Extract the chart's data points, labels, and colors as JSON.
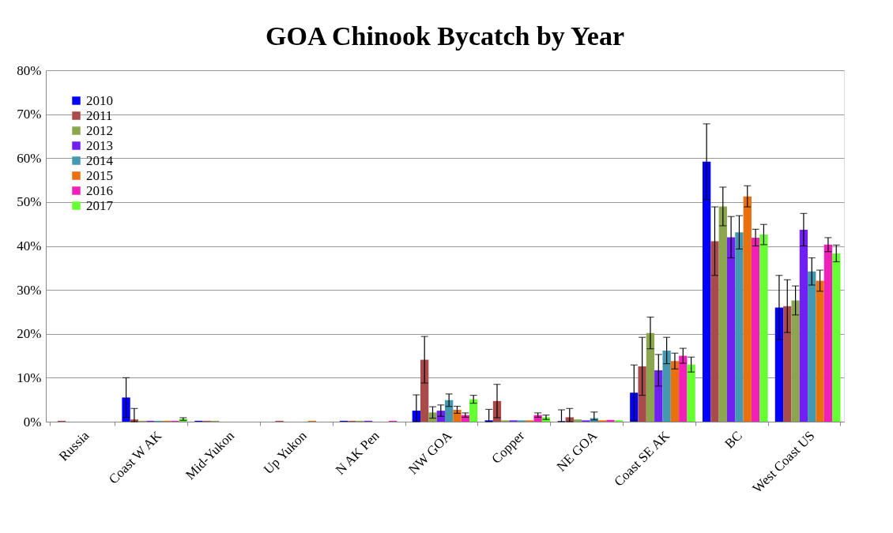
{
  "chart_data": {
    "type": "bar",
    "title": "GOA Chinook Bycatch by Year",
    "categories": [
      "Russia",
      "Coast W AK",
      "Mid-Yukon",
      "Up Yukon",
      "N AK Pen",
      "NW GOA",
      "Copper",
      "NE GOA",
      "Coast SE AK",
      "BC",
      "West Coast US"
    ],
    "series": [
      {
        "name": "2010",
        "color": "#0000ff",
        "values": [
          null,
          5.5,
          0.2,
          null,
          0.2,
          2.5,
          0.3,
          0.1,
          6.6,
          59.2,
          26.0
        ],
        "errors": [
          null,
          4.5,
          null,
          null,
          null,
          [
            0,
            6.1
          ],
          [
            0,
            2.8
          ],
          [
            0,
            2.7
          ],
          6.3,
          8.6,
          7.3
        ]
      },
      {
        "name": "2011",
        "color": "#a94b4b",
        "values": [
          0.2,
          0.5,
          0.2,
          0.2,
          0.2,
          14.1,
          4.7,
          1.0,
          12.6,
          41.1,
          26.3
        ],
        "errors": [
          null,
          [
            0,
            3.0
          ],
          null,
          null,
          null,
          5.3,
          3.8,
          [
            0,
            3.0
          ],
          6.6,
          7.8,
          6.0
        ]
      },
      {
        "name": "2012",
        "color": "#8ba64f",
        "values": [
          null,
          0.2,
          0.2,
          null,
          0.2,
          2.1,
          0.3,
          0.5,
          20.2,
          49.0,
          27.6
        ],
        "errors": [
          null,
          null,
          null,
          null,
          null,
          1.3,
          null,
          null,
          3.6,
          4.4,
          3.3
        ]
      },
      {
        "name": "2013",
        "color": "#7020f0",
        "values": [
          null,
          0.2,
          null,
          null,
          0.2,
          2.5,
          0.3,
          0.3,
          11.7,
          42.0,
          43.7
        ],
        "errors": [
          null,
          null,
          null,
          null,
          null,
          1.3,
          null,
          null,
          3.6,
          4.7,
          3.7
        ]
      },
      {
        "name": "2014",
        "color": "#4499b0",
        "values": [
          null,
          0.2,
          null,
          null,
          null,
          4.9,
          0.3,
          0.8,
          16.2,
          43.1,
          34.2
        ],
        "errors": [
          null,
          null,
          null,
          null,
          null,
          1.4,
          null,
          [
            0.4,
            2.2
          ],
          3.0,
          3.8,
          3.1
        ]
      },
      {
        "name": "2015",
        "color": "#e8700e",
        "values": [
          null,
          0.2,
          null,
          0.2,
          null,
          2.7,
          0.3,
          0.3,
          13.8,
          51.3,
          32.1
        ],
        "errors": [
          null,
          null,
          null,
          null,
          null,
          0.8,
          null,
          null,
          1.8,
          2.4,
          2.4
        ]
      },
      {
        "name": "2016",
        "color": "#f020b8",
        "values": [
          null,
          0.2,
          null,
          null,
          0.2,
          1.5,
          1.5,
          0.4,
          15.0,
          41.9,
          40.3
        ],
        "errors": [
          null,
          null,
          null,
          null,
          null,
          0.5,
          0.5,
          null,
          1.7,
          1.9,
          1.6
        ]
      },
      {
        "name": "2017",
        "color": "#66ff33",
        "values": [
          null,
          0.6,
          null,
          null,
          null,
          5.1,
          1.0,
          0.3,
          13.0,
          42.6,
          38.3
        ],
        "errors": [
          null,
          0.3,
          null,
          null,
          null,
          0.9,
          0.5,
          null,
          1.7,
          2.3,
          1.9
        ]
      }
    ],
    "ylim": [
      0,
      80
    ],
    "yticks": [
      {
        "value": 0,
        "label": "0%"
      },
      {
        "value": 10,
        "label": "10%"
      },
      {
        "value": 20,
        "label": "20%"
      },
      {
        "value": 30,
        "label": "30%"
      },
      {
        "value": 40,
        "label": "40%"
      },
      {
        "value": 50,
        "label": "50%"
      },
      {
        "value": 60,
        "label": "60%"
      },
      {
        "value": 70,
        "label": "70%"
      },
      {
        "value": 80,
        "label": "80%"
      }
    ],
    "grid": "y",
    "legend": "top left"
  }
}
